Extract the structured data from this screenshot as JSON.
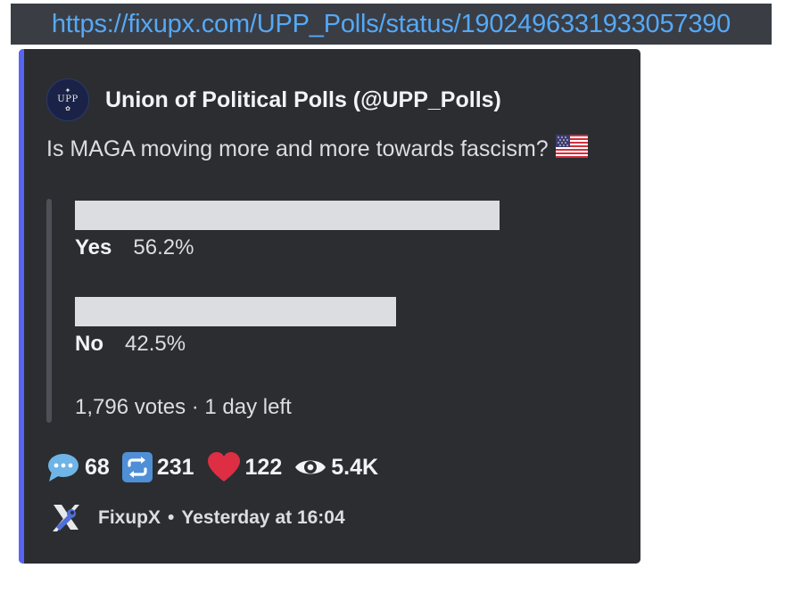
{
  "link": {
    "url": "https://fixupx.com/UPP_Polls/status/1902496331933057390"
  },
  "embed": {
    "author": {
      "name": "Union of Political Polls (@UPP_Polls)",
      "avatar_text": "UPP"
    },
    "description": "Is MAGA moving more and more towards fascism?",
    "flag_icon": "us-flag-icon",
    "poll": {
      "options": [
        {
          "label": "Yes",
          "percent_text": "56.2%",
          "value": 56.2
        },
        {
          "label": "No",
          "percent_text": "42.5%",
          "value": 42.5
        }
      ],
      "footer": "1,796 votes · 1 day left"
    },
    "stats": {
      "replies": "68",
      "retweets": "231",
      "likes": "122",
      "views": "5.4K"
    },
    "footer": {
      "provider": "FixupX",
      "separator": "•",
      "timestamp": "Yesterday at 16:04"
    },
    "colors": {
      "accent": "#5865f2",
      "background": "#2b2d31",
      "link": "#54a9f7",
      "bar": "#dcdde1"
    }
  }
}
